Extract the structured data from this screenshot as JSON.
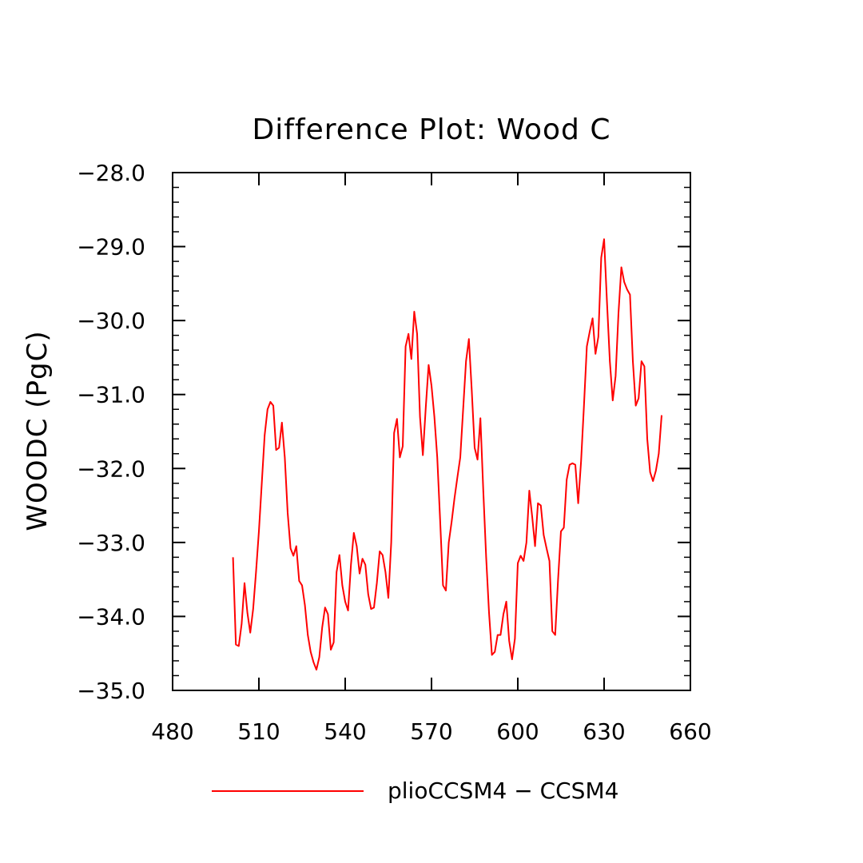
{
  "chart_data": {
    "type": "line",
    "title": "Difference Plot: Wood C",
    "xlabel": "",
    "ylabel": "WOODC  (PgC)",
    "xlim": [
      480,
      660
    ],
    "ylim": [
      -35.0,
      -28.0
    ],
    "xticks": [
      480,
      510,
      540,
      570,
      600,
      630,
      660
    ],
    "xtick_labels": [
      "480",
      "510",
      "540",
      "570",
      "600",
      "630",
      "660"
    ],
    "yticks": [
      -35.0,
      -34.0,
      -33.0,
      -32.0,
      -31.0,
      -30.0,
      -29.0,
      -28.0
    ],
    "ytick_labels": [
      "−35.0",
      "−34.0",
      "−33.0",
      "−32.0",
      "−31.0",
      "−30.0",
      "−29.0",
      "−28.0"
    ],
    "grid": false,
    "legend_position": "bottom",
    "series": [
      {
        "name": "plioCCSM4 − CCSM4",
        "color": "#ff0000",
        "x": [
          501,
          502,
          503,
          504,
          505,
          506,
          507,
          508,
          509,
          510,
          511,
          512,
          513,
          514,
          515,
          516,
          517,
          518,
          519,
          520,
          521,
          522,
          523,
          524,
          525,
          526,
          527,
          528,
          529,
          530,
          531,
          532,
          533,
          534,
          535,
          536,
          537,
          538,
          539,
          540,
          541,
          542,
          543,
          544,
          545,
          546,
          547,
          548,
          549,
          550,
          551,
          552,
          553,
          554,
          555,
          556,
          557,
          558,
          559,
          560,
          561,
          562,
          563,
          564,
          565,
          566,
          567,
          568,
          569,
          570,
          571,
          572,
          573,
          574,
          575,
          576,
          577,
          578,
          579,
          580,
          581,
          582,
          583,
          584,
          585,
          586,
          587,
          588,
          589,
          590,
          591,
          592,
          593,
          594,
          595,
          596,
          597,
          598,
          599,
          600,
          601,
          602,
          603,
          604,
          605,
          606,
          607,
          608,
          609,
          610,
          611,
          612,
          613,
          614,
          615,
          616,
          617,
          618,
          619,
          620,
          621,
          622,
          623,
          624,
          625,
          626,
          627,
          628,
          629,
          630,
          631,
          632,
          633,
          634,
          635,
          636,
          637,
          638,
          639,
          640,
          641,
          642,
          643,
          644,
          645,
          646,
          647,
          648,
          649,
          650
        ],
        "y": [
          -33.2,
          -34.38,
          -34.4,
          -34.1,
          -33.55,
          -33.95,
          -34.22,
          -33.9,
          -33.4,
          -32.85,
          -32.2,
          -31.55,
          -31.2,
          -31.1,
          -31.15,
          -31.75,
          -31.72,
          -31.38,
          -31.85,
          -32.6,
          -33.08,
          -33.18,
          -33.05,
          -33.52,
          -33.58,
          -33.85,
          -34.25,
          -34.48,
          -34.62,
          -34.72,
          -34.55,
          -34.15,
          -33.88,
          -33.97,
          -34.45,
          -34.35,
          -33.4,
          -33.17,
          -33.58,
          -33.8,
          -33.92,
          -33.3,
          -32.87,
          -33.05,
          -33.42,
          -33.22,
          -33.3,
          -33.7,
          -33.9,
          -33.88,
          -33.55,
          -33.12,
          -33.17,
          -33.4,
          -33.75,
          -33.0,
          -31.52,
          -31.33,
          -31.85,
          -31.7,
          -30.35,
          -30.18,
          -30.52,
          -29.88,
          -30.18,
          -31.3,
          -31.82,
          -31.18,
          -30.6,
          -30.88,
          -31.3,
          -31.85,
          -32.7,
          -33.58,
          -33.65,
          -33.0,
          -32.72,
          -32.4,
          -32.12,
          -31.85,
          -31.2,
          -30.55,
          -30.25,
          -30.95,
          -31.72,
          -31.88,
          -31.32,
          -32.3,
          -33.2,
          -33.95,
          -34.52,
          -34.48,
          -34.25,
          -34.25,
          -33.97,
          -33.8,
          -34.33,
          -34.58,
          -34.3,
          -33.28,
          -33.18,
          -33.25,
          -33.0,
          -32.3,
          -32.65,
          -33.05,
          -32.47,
          -32.5,
          -32.9,
          -33.08,
          -33.25,
          -34.2,
          -34.25,
          -33.5,
          -32.85,
          -32.8,
          -32.15,
          -31.95,
          -31.93,
          -31.95,
          -32.47,
          -31.9,
          -31.15,
          -30.35,
          -30.15,
          -29.97,
          -30.45,
          -30.22,
          -29.15,
          -28.9,
          -29.75,
          -30.55,
          -31.08,
          -30.75,
          -29.9,
          -29.28,
          -29.48,
          -29.58,
          -29.65,
          -30.55,
          -31.15,
          -31.05,
          -30.55,
          -30.62,
          -31.6,
          -32.05,
          -32.17,
          -32.03,
          -31.8,
          -31.28
        ]
      }
    ]
  }
}
